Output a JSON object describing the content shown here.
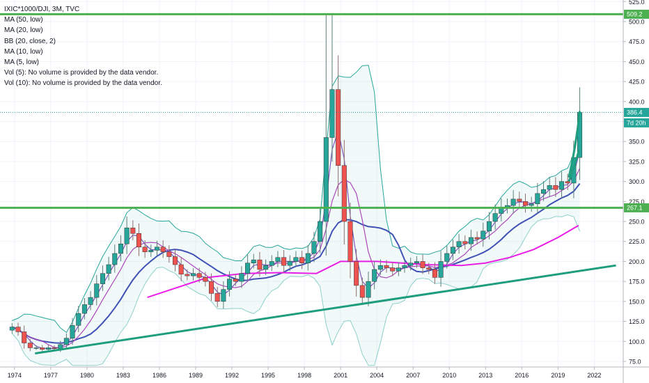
{
  "legend": {
    "symbol": "IXIC*1000/DJI, 3M, TVC",
    "indicators": [
      "MA (50, low)",
      "MA (20, low)",
      "BB (20, close, 2)",
      "MA (10, low)",
      "MA (5, low)",
      "Vol (5): No volume is provided by the data vendor.",
      "Vol (10): No volume is provided by the data vendor."
    ]
  },
  "price_badges": [
    {
      "value": "509.2",
      "color": "#4caf50"
    },
    {
      "value": "386.4",
      "color": "#26a69a"
    },
    {
      "value": "7d 20h",
      "color": "#26a69a"
    },
    {
      "value": "267.1",
      "color": "#4caf50"
    }
  ],
  "chart_data": {
    "type": "candlestick",
    "title": "IXIC*1000/DJI, 3M, TVC",
    "x_ticks": [
      "1974",
      "1977",
      "1980",
      "1983",
      "1986",
      "1989",
      "1992",
      "1995",
      "1998",
      "2001",
      "2004",
      "2007",
      "2010",
      "2013",
      "2016",
      "2019",
      "2022"
    ],
    "y_ticks": [
      75,
      100,
      125,
      150,
      175,
      200,
      225,
      250,
      275,
      300,
      325,
      350,
      375,
      400,
      425,
      450,
      475,
      500,
      525
    ],
    "ylim": [
      68,
      527
    ],
    "xlim": [
      1972.8,
      2024.4
    ],
    "closes": [
      [
        1973.8,
        118
      ],
      [
        1974.3,
        112
      ],
      [
        1974.8,
        98
      ],
      [
        1975.3,
        92
      ],
      [
        1975.8,
        92
      ],
      [
        1976.3,
        90
      ],
      [
        1976.8,
        92
      ],
      [
        1977.3,
        91
      ],
      [
        1977.8,
        96
      ],
      [
        1978.3,
        104
      ],
      [
        1978.8,
        120
      ],
      [
        1979.3,
        135
      ],
      [
        1979.8,
        146
      ],
      [
        1980.3,
        155
      ],
      [
        1980.8,
        172
      ],
      [
        1981.3,
        185
      ],
      [
        1981.8,
        196
      ],
      [
        1982.3,
        210
      ],
      [
        1982.8,
        222
      ],
      [
        1983.3,
        242
      ],
      [
        1983.8,
        235
      ],
      [
        1984.3,
        218
      ],
      [
        1984.8,
        212
      ],
      [
        1985.3,
        214
      ],
      [
        1985.8,
        218
      ],
      [
        1986.3,
        212
      ],
      [
        1986.8,
        206
      ],
      [
        1987.3,
        196
      ],
      [
        1987.8,
        184
      ],
      [
        1988.3,
        182
      ],
      [
        1988.8,
        185
      ],
      [
        1989.3,
        180
      ],
      [
        1989.8,
        175
      ],
      [
        1990.3,
        160
      ],
      [
        1990.8,
        150
      ],
      [
        1991.3,
        165
      ],
      [
        1991.8,
        178
      ],
      [
        1992.3,
        175
      ],
      [
        1992.8,
        185
      ],
      [
        1993.3,
        198
      ],
      [
        1993.8,
        202
      ],
      [
        1994.3,
        190
      ],
      [
        1994.8,
        195
      ],
      [
        1995.3,
        200
      ],
      [
        1995.8,
        205
      ],
      [
        1996.3,
        195
      ],
      [
        1996.8,
        200
      ],
      [
        1997.3,
        205
      ],
      [
        1997.8,
        198
      ],
      [
        1998.3,
        210
      ],
      [
        1998.8,
        225
      ],
      [
        1999.3,
        250
      ],
      [
        1999.8,
        355
      ],
      [
        2000.3,
        415
      ],
      [
        2000.8,
        320
      ],
      [
        2001.3,
        250
      ],
      [
        2001.8,
        200
      ],
      [
        2002.3,
        170
      ],
      [
        2002.8,
        155
      ],
      [
        2003.3,
        175
      ],
      [
        2003.8,
        190
      ],
      [
        2004.3,
        195
      ],
      [
        2004.8,
        192
      ],
      [
        2005.3,
        188
      ],
      [
        2005.8,
        192
      ],
      [
        2006.3,
        195
      ],
      [
        2006.8,
        198
      ],
      [
        2007.3,
        200
      ],
      [
        2007.8,
        192
      ],
      [
        2008.3,
        190
      ],
      [
        2008.8,
        180
      ],
      [
        2009.3,
        200
      ],
      [
        2009.8,
        210
      ],
      [
        2010.3,
        218
      ],
      [
        2010.8,
        225
      ],
      [
        2011.3,
        222
      ],
      [
        2011.8,
        230
      ],
      [
        2012.3,
        228
      ],
      [
        2012.8,
        238
      ],
      [
        2013.3,
        250
      ],
      [
        2013.8,
        260
      ],
      [
        2014.3,
        268
      ],
      [
        2014.8,
        270
      ],
      [
        2015.3,
        278
      ],
      [
        2015.8,
        275
      ],
      [
        2016.3,
        270
      ],
      [
        2016.8,
        272
      ],
      [
        2017.3,
        285
      ],
      [
        2017.8,
        290
      ],
      [
        2018.3,
        295
      ],
      [
        2018.8,
        290
      ],
      [
        2019.3,
        300
      ],
      [
        2019.8,
        298
      ],
      [
        2020.3,
        330
      ],
      [
        2020.8,
        386.4
      ]
    ],
    "moving_average_50": [
      [
        1985,
        155
      ],
      [
        1987,
        165
      ],
      [
        1990,
        180
      ],
      [
        1993,
        185
      ],
      [
        1996,
        186
      ],
      [
        1999,
        185
      ],
      [
        2001,
        200
      ],
      [
        2004,
        200
      ],
      [
        2008,
        196
      ],
      [
        2011,
        195
      ],
      [
        2013,
        198
      ],
      [
        2015,
        205
      ],
      [
        2017,
        215
      ],
      [
        2019,
        230
      ],
      [
        2020.7,
        245
      ]
    ],
    "support_trendline": [
      [
        1975.7,
        85
      ],
      [
        2023.8,
        195
      ]
    ],
    "horizontal_levels": [
      509.2,
      267.1
    ],
    "last_price_line": 386.4,
    "grid": true,
    "price_axis_position": "right"
  }
}
